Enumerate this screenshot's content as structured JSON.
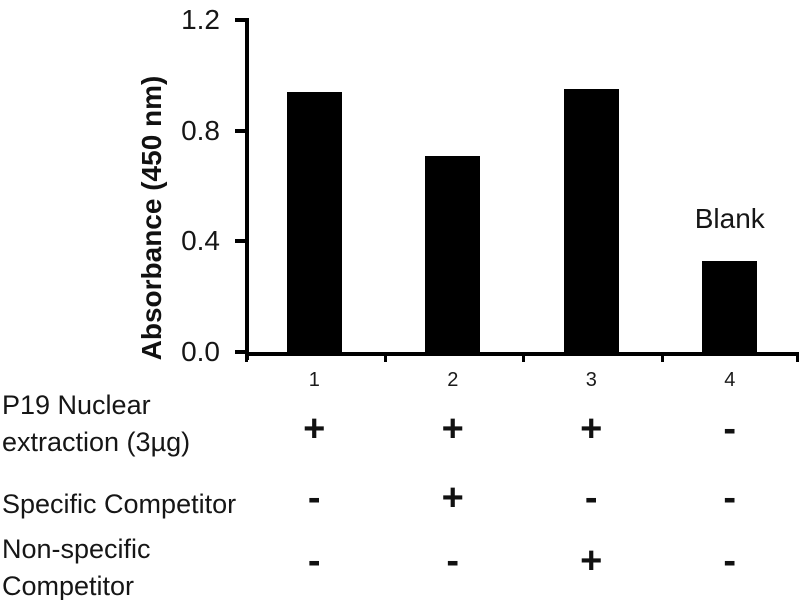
{
  "chart_data": {
    "type": "bar",
    "title": "",
    "xlabel": "",
    "ylabel": "Absorbance (450 nm)",
    "categories": [
      "1",
      "2",
      "3",
      "4"
    ],
    "values": [
      0.94,
      0.71,
      0.95,
      0.33
    ],
    "ylim": [
      0,
      1.2
    ],
    "yticks": [
      0,
      0.4,
      0.8,
      1.2
    ],
    "ytick_labels": [
      "0.0",
      "0.4",
      "0.8",
      "1.2"
    ],
    "bar_color": "#000000",
    "grid": false,
    "legend": null,
    "annotations": [
      {
        "text": "Blank",
        "bar_index": 3
      }
    ]
  },
  "condition_table": {
    "rows": [
      {
        "label": "P19 Nuclear extraction (3µg)",
        "label_lines": [
          "P19 Nuclear",
          "extraction (3µg)"
        ],
        "values": [
          "+",
          "+",
          "+",
          "-"
        ]
      },
      {
        "label": "Specific Competitor",
        "label_lines": [
          "Specific Competitor"
        ],
        "values": [
          "-",
          "+",
          "-",
          "-"
        ]
      },
      {
        "label": "Non-specific Competitor",
        "label_lines": [
          "Non-specific",
          "Competitor"
        ],
        "values": [
          "-",
          "-",
          "+",
          "-"
        ]
      }
    ]
  }
}
